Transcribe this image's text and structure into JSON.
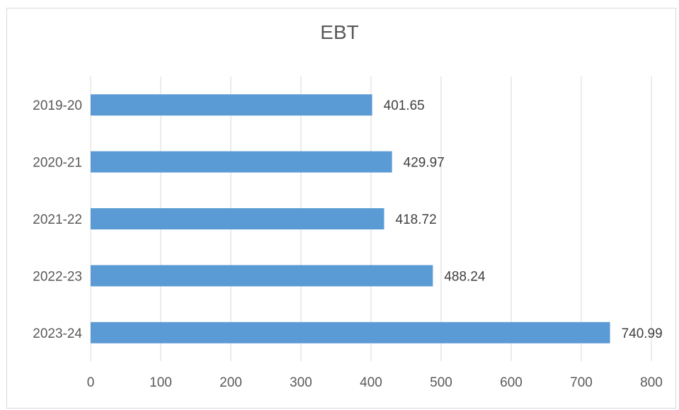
{
  "chart_data": {
    "type": "bar",
    "orientation": "horizontal",
    "title": "EBT",
    "xlabel": "",
    "ylabel": "",
    "categories": [
      "2019-20",
      "2020-21",
      "2021-22",
      "2022-23",
      "2023-24"
    ],
    "values": [
      401.65,
      429.97,
      418.72,
      488.24,
      740.99
    ],
    "data_labels": [
      "401.65",
      "429.97",
      "418.72",
      "488.24",
      "740.99"
    ],
    "xlim": [
      0,
      800
    ],
    "x_ticks": [
      0,
      100,
      200,
      300,
      400,
      500,
      600,
      700,
      800
    ],
    "grid": "vertical",
    "legend": "none",
    "bar_color": "#5b9bd5",
    "grid_color": "#d9d9d9"
  }
}
